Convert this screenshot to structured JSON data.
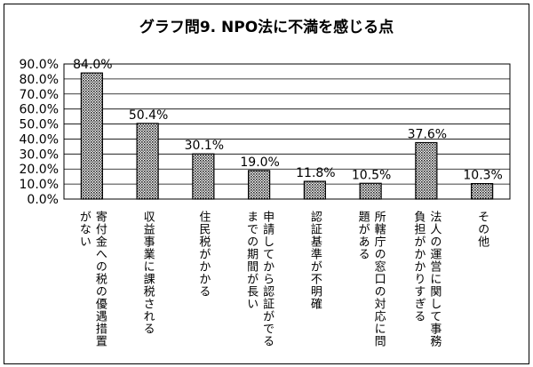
{
  "chart_data": {
    "type": "bar",
    "title": "グラフ問9. NPO法に不満を感じる点",
    "categories": [
      "寄付金への税の優遇措置がない",
      "収益事業に課税される",
      "住民税がかかる",
      "申請してから認証がでるまでの期間が長い",
      "認証基準が不明確",
      "所轄庁の窓口の対応に問題がある",
      "法人の運営に関して事務負担がかかりすぎる",
      "その他"
    ],
    "category_label_lines": [
      [
        "寄付金への税の優遇措置",
        "がない"
      ],
      [
        "収益事業に課税される"
      ],
      [
        "住民税がかかる"
      ],
      [
        "申請してから認証がでる",
        "までの期間が長い"
      ],
      [
        "認証基準が不明確"
      ],
      [
        "所轄庁の窓口の対応に問",
        "題がある"
      ],
      [
        "法人の運営に関して事務",
        "負担がかかりすぎる"
      ],
      [
        "その他"
      ]
    ],
    "values": [
      84.0,
      50.4,
      30.1,
      19.0,
      11.8,
      10.5,
      37.6,
      10.3
    ],
    "value_labels": [
      "84.0%",
      "50.4%",
      "30.1%",
      "19.0%",
      "11.8%",
      "10.5%",
      "37.6%",
      "10.3%"
    ],
    "yticks": [
      "0.0%",
      "10.0%",
      "20.0%",
      "30.0%",
      "40.0%",
      "50.0%",
      "60.0%",
      "70.0%",
      "80.0%",
      "90.0%"
    ],
    "ylim": [
      0,
      90
    ],
    "xlabel": "",
    "ylabel": "",
    "grid": true,
    "legend": "none",
    "bar_pattern": "dotted-gray"
  }
}
